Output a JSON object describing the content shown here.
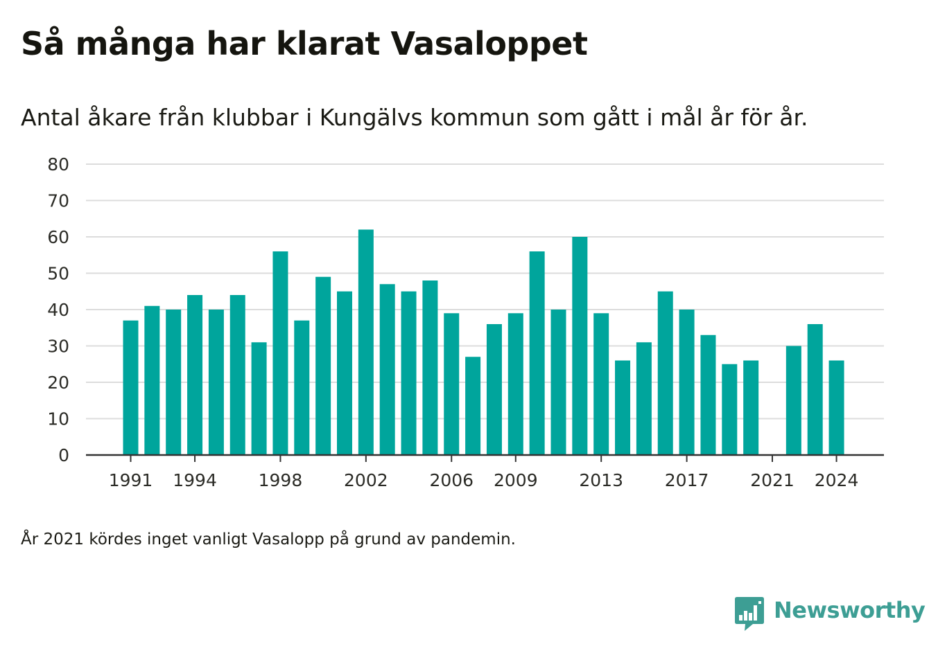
{
  "title": "Så många har klarat Vasaloppet",
  "subtitle": "Antal åkare från klubbar i Kungälvs kommun som gått i mål år för år.",
  "footnote": "År 2021 kördes inget vanligt Vasalopp på grund av pandemin.",
  "brand": {
    "name": "Newsworthy",
    "icon": "newsworthy-logo-icon",
    "color": "#3d9e94"
  },
  "chart_data": {
    "type": "bar",
    "bar_color": "#00a59c",
    "grid": true,
    "ylim": [
      0,
      80
    ],
    "y_ticks": [
      0,
      10,
      20,
      30,
      40,
      50,
      60,
      70,
      80
    ],
    "x_ticks": [
      "1991",
      "1994",
      "1998",
      "2002",
      "2006",
      "2009",
      "2013",
      "2017",
      "2021",
      "2024"
    ],
    "categories": [
      "1991",
      "1992",
      "1993",
      "1994",
      "1995",
      "1996",
      "1997",
      "1998",
      "1999",
      "2000",
      "2001",
      "2002",
      "2003",
      "2004",
      "2005",
      "2006",
      "2007",
      "2008",
      "2009",
      "2010",
      "2011",
      "2012",
      "2013",
      "2014",
      "2015",
      "2016",
      "2017",
      "2018",
      "2019",
      "2020",
      "2021",
      "2022",
      "2023",
      "2024"
    ],
    "values": [
      37,
      41,
      40,
      44,
      40,
      44,
      31,
      56,
      37,
      49,
      45,
      62,
      47,
      45,
      48,
      39,
      27,
      36,
      39,
      56,
      40,
      60,
      39,
      26,
      31,
      45,
      40,
      33,
      25,
      26,
      0,
      30,
      36,
      26
    ],
    "xlabel": "",
    "ylabel": ""
  }
}
